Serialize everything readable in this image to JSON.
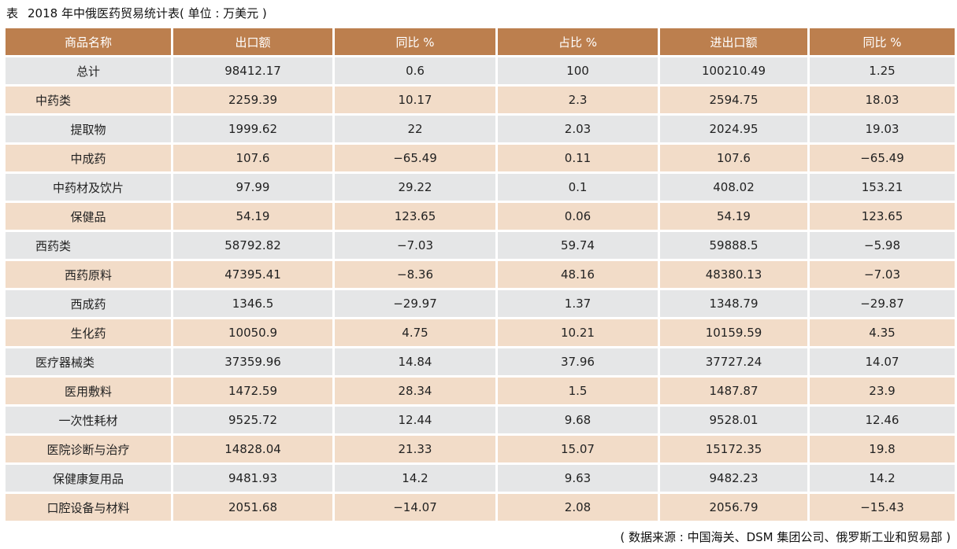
{
  "title": {
    "lead": "表",
    "text": "2018 年中俄医药贸易统计表( 单位 : 万美元 )"
  },
  "table": {
    "headers": [
      "商品名称",
      "出口额",
      "同比 %",
      "占比 %",
      "进出口额",
      "同比 %"
    ],
    "rows": [
      {
        "name": "总计",
        "level": 0,
        "cells": [
          "98412.17",
          "0.6",
          "100",
          "100210.49",
          "1.25"
        ]
      },
      {
        "name": "中药类",
        "level": 1,
        "cells": [
          "2259.39",
          "10.17",
          "2.3",
          "2594.75",
          "18.03"
        ]
      },
      {
        "name": "提取物",
        "level": 2,
        "cells": [
          "1999.62",
          "22",
          "2.03",
          "2024.95",
          "19.03"
        ]
      },
      {
        "name": "中成药",
        "level": 2,
        "cells": [
          "107.6",
          "−65.49",
          "0.11",
          "107.6",
          "−65.49"
        ]
      },
      {
        "name": "中药材及饮片",
        "level": 2,
        "cells": [
          "97.99",
          "29.22",
          "0.1",
          "408.02",
          "153.21"
        ]
      },
      {
        "name": "保健品",
        "level": 2,
        "cells": [
          "54.19",
          "123.65",
          "0.06",
          "54.19",
          "123.65"
        ]
      },
      {
        "name": "西药类",
        "level": 1,
        "cells": [
          "58792.82",
          "−7.03",
          "59.74",
          "59888.5",
          "−5.98"
        ]
      },
      {
        "name": "西药原料",
        "level": 2,
        "cells": [
          "47395.41",
          "−8.36",
          "48.16",
          "48380.13",
          "−7.03"
        ]
      },
      {
        "name": "西成药",
        "level": 2,
        "cells": [
          "1346.5",
          "−29.97",
          "1.37",
          "1348.79",
          "−29.87"
        ]
      },
      {
        "name": "生化药",
        "level": 2,
        "cells": [
          "10050.9",
          "4.75",
          "10.21",
          "10159.59",
          "4.35"
        ]
      },
      {
        "name": "医疗器械类",
        "level": 1,
        "cells": [
          "37359.96",
          "14.84",
          "37.96",
          "37727.24",
          "14.07"
        ]
      },
      {
        "name": "医用敷料",
        "level": 2,
        "cells": [
          "1472.59",
          "28.34",
          "1.5",
          "1487.87",
          "23.9"
        ]
      },
      {
        "name": "一次性耗材",
        "level": 2,
        "cells": [
          "9525.72",
          "12.44",
          "9.68",
          "9528.01",
          "12.46"
        ]
      },
      {
        "name": "医院诊断与治疗",
        "level": 2,
        "cells": [
          "14828.04",
          "21.33",
          "15.07",
          "15172.35",
          "19.8"
        ]
      },
      {
        "name": "保健康复用品",
        "level": 2,
        "cells": [
          "9481.93",
          "14.2",
          "9.63",
          "9482.23",
          "14.2"
        ]
      },
      {
        "name": "口腔设备与材料",
        "level": 2,
        "cells": [
          "2051.68",
          "−14.07",
          "2.08",
          "2056.79",
          "−15.43"
        ]
      }
    ]
  },
  "source": "( 数据来源 : 中国海关、DSM 集团公司、俄罗斯工业和贸易部 )"
}
